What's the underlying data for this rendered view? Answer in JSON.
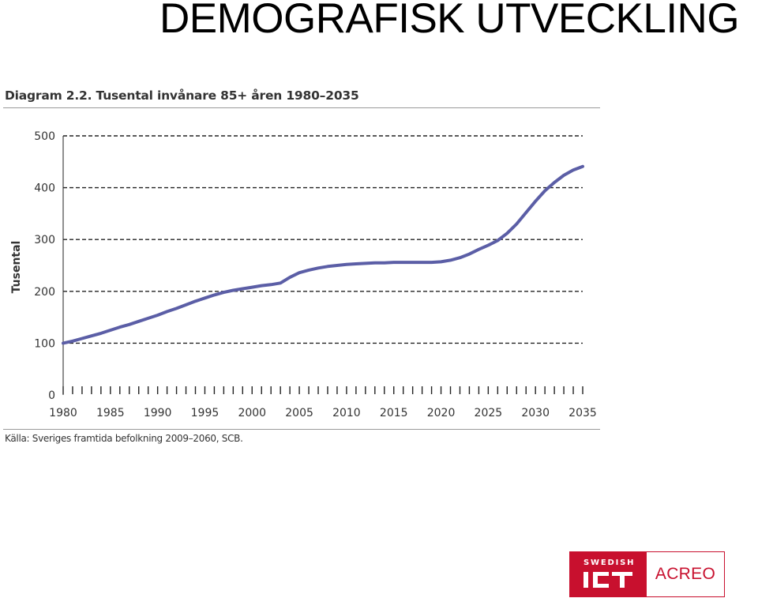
{
  "slide": {
    "title": "DEMOGRAFISK UTVECKLING"
  },
  "figure": {
    "caption": "Diagram 2.2. Tusental invånare 85+ åren 1980–2035",
    "source": "Källa: Sveriges framtida befolkning 2009–2060, SCB."
  },
  "logo": {
    "swedish": "SWEDISH",
    "ict": "ICT",
    "acreo": "ACREO",
    "brand_color": "#c8102e"
  },
  "chart_data": {
    "type": "line",
    "title": "Diagram 2.2. Tusental invånare 85+ åren 1980–2035",
    "xlabel": "",
    "ylabel": "Tusental",
    "ylim": [
      0,
      500
    ],
    "xlim": [
      1980,
      2035
    ],
    "yticks": [
      0,
      100,
      200,
      300,
      400,
      500
    ],
    "xticks": [
      1980,
      1985,
      1990,
      1995,
      2000,
      2005,
      2010,
      2015,
      2020,
      2025,
      2030,
      2035
    ],
    "grid": "horizontal-dashed",
    "line_color": "#5b5ea6",
    "series": [
      {
        "name": "",
        "x": [
          1980,
          1981,
          1982,
          1983,
          1984,
          1985,
          1986,
          1987,
          1988,
          1989,
          1990,
          1991,
          1992,
          1993,
          1994,
          1995,
          1996,
          1997,
          1998,
          1999,
          2000,
          2001,
          2002,
          2003,
          2004,
          2005,
          2006,
          2007,
          2008,
          2009,
          2010,
          2011,
          2012,
          2013,
          2014,
          2015,
          2016,
          2017,
          2018,
          2019,
          2020,
          2021,
          2022,
          2023,
          2024,
          2025,
          2026,
          2027,
          2028,
          2029,
          2030,
          2031,
          2032,
          2033,
          2034,
          2035
        ],
        "y": [
          100,
          104,
          109,
          114,
          119,
          125,
          131,
          136,
          142,
          148,
          154,
          161,
          167,
          174,
          181,
          187,
          193,
          198,
          202,
          205,
          208,
          211,
          213,
          216,
          227,
          236,
          241,
          245,
          248,
          250,
          252,
          253,
          254,
          255,
          255,
          256,
          256,
          256,
          256,
          256,
          257,
          260,
          265,
          272,
          281,
          289,
          298,
          312,
          330,
          352,
          374,
          394,
          410,
          424,
          434,
          441
        ]
      }
    ]
  }
}
